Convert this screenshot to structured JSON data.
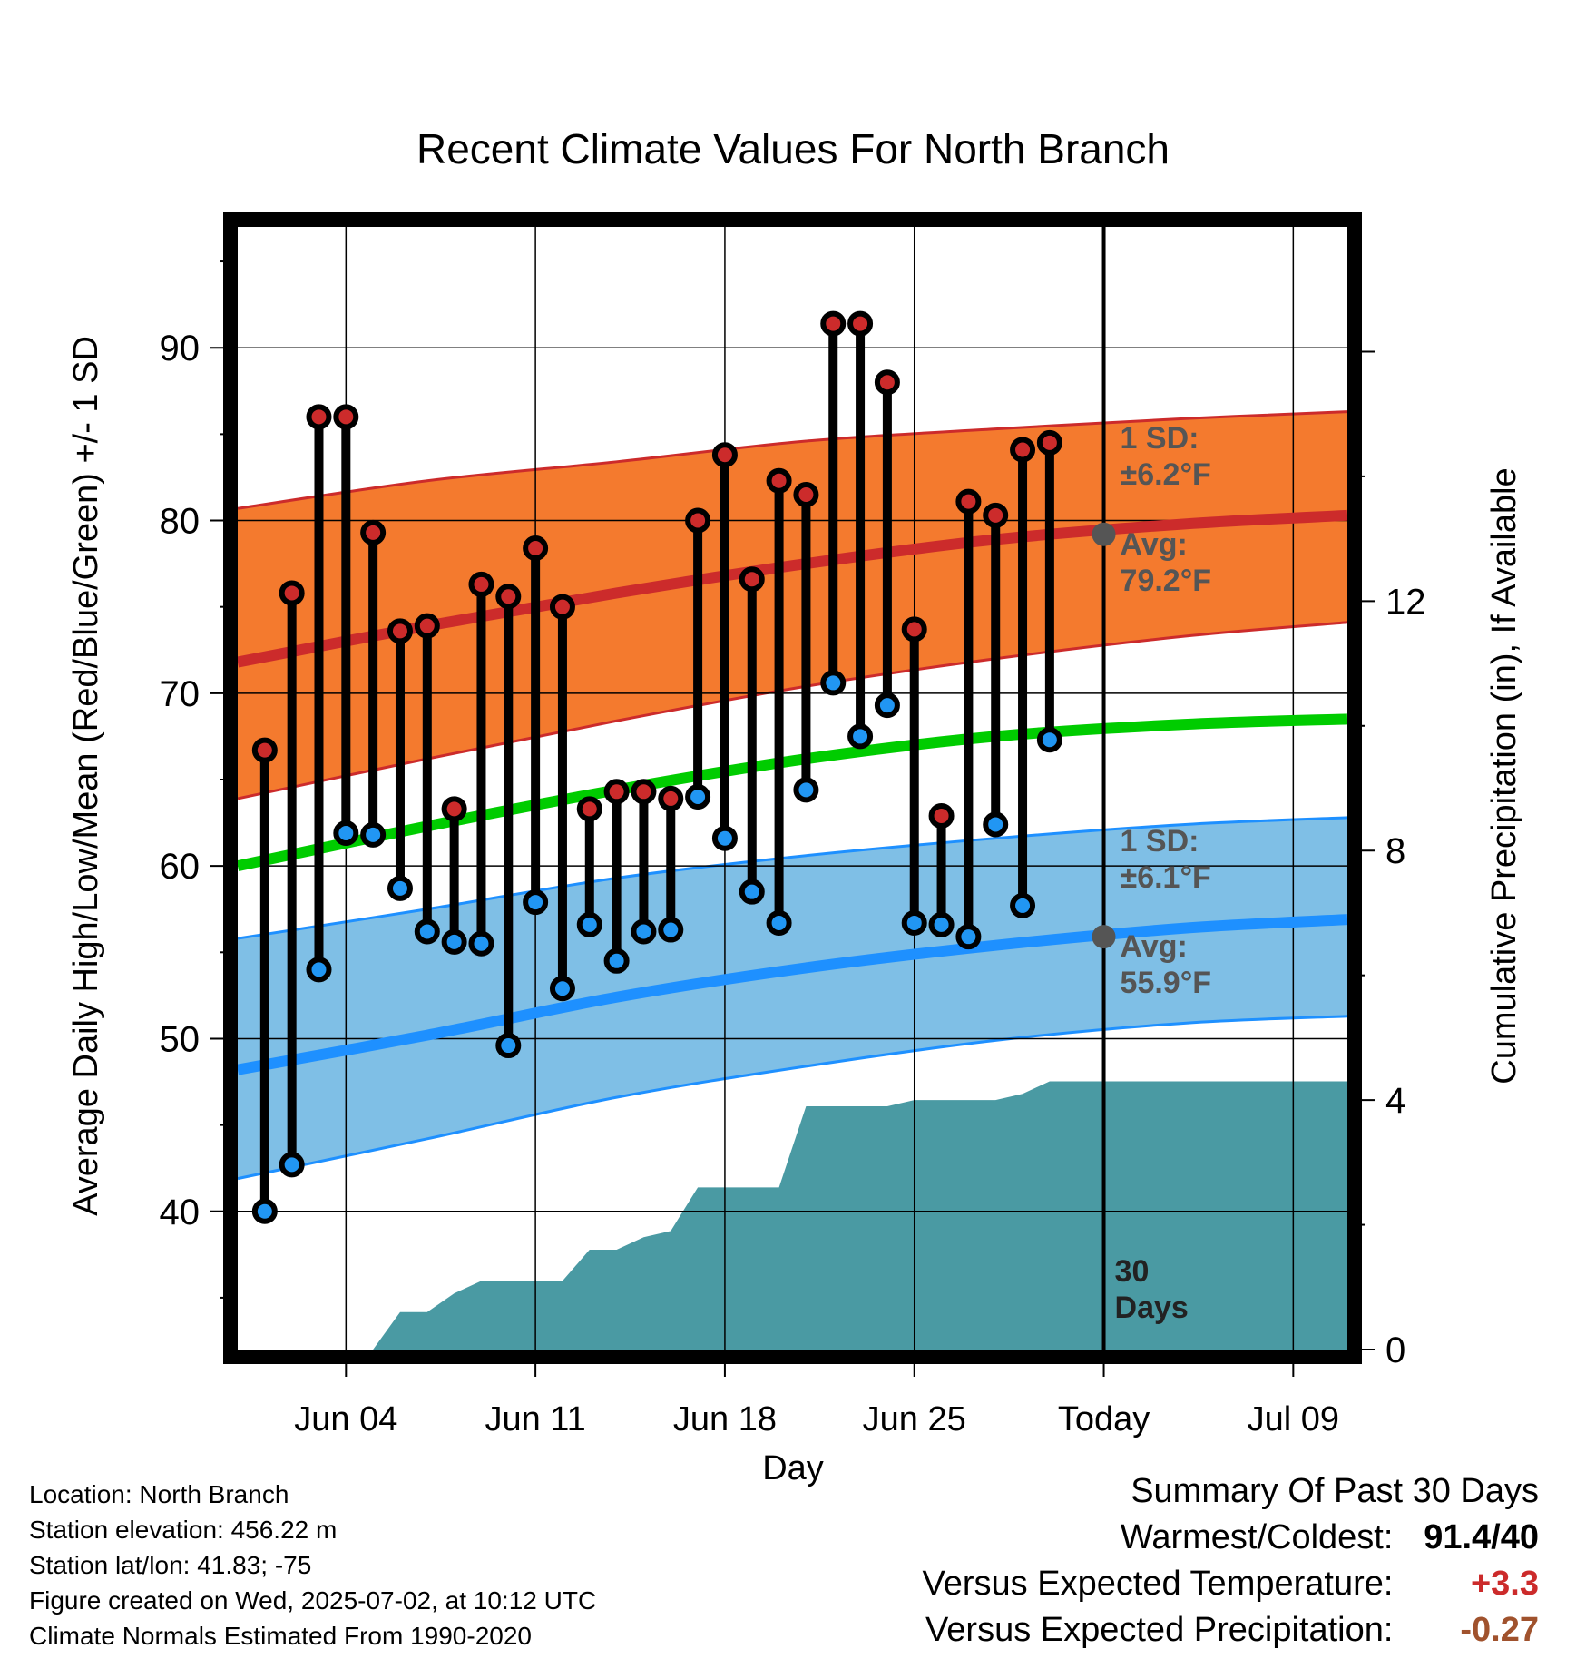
{
  "chart_data": {
    "type": "line",
    "title": "Recent Climate Values For North Branch",
    "xlabel": "Day",
    "ylabel_left": "Average Daily High/Low/Mean (Red/Blue/Green) +/- 1 SD",
    "ylabel_right": "Cumulative Precipitation (in), If Available",
    "x_range": [
      "May 31",
      "Jul 11"
    ],
    "ylim_left": [
      32,
      97
    ],
    "ylim_right": [
      0,
      18
    ],
    "x_ticks": [
      {
        "date": "Jun 04",
        "label": "Jun 04"
      },
      {
        "date": "Jun 11",
        "label": "Jun 11"
      },
      {
        "date": "Jun 18",
        "label": "Jun 18"
      },
      {
        "date": "Jun 25",
        "label": "Jun 25"
      },
      {
        "date": "Jul 02",
        "label": "Today"
      },
      {
        "date": "Jul 09",
        "label": "Jul 09"
      }
    ],
    "y_ticks_left": [
      40,
      50,
      60,
      70,
      80,
      90
    ],
    "y_ticks_right": [
      0,
      4,
      8,
      12
    ],
    "grid": true,
    "normals": {
      "dates": [
        "May 31",
        "Jun 07",
        "Jun 14",
        "Jun 21",
        "Jun 28",
        "Jul 05",
        "Jul 11"
      ],
      "high_mean": [
        71.8,
        73.9,
        75.8,
        77.5,
        78.9,
        79.8,
        80.3
      ],
      "high_plus_sd": [
        80.7,
        82.3,
        83.4,
        84.6,
        85.3,
        85.9,
        86.3
      ],
      "high_minus_sd": [
        63.9,
        66.2,
        68.4,
        70.4,
        72.0,
        73.3,
        74.1
      ],
      "mean": [
        60.0,
        62.3,
        64.4,
        66.2,
        67.5,
        68.2,
        68.5
      ],
      "low_mean": [
        48.2,
        50.2,
        52.4,
        54.1,
        55.4,
        56.4,
        56.9
      ],
      "low_plus_sd": [
        55.8,
        57.5,
        59.3,
        60.6,
        61.6,
        62.4,
        62.8
      ],
      "low_minus_sd": [
        41.9,
        44.2,
        46.6,
        48.4,
        49.9,
        50.9,
        51.3
      ]
    },
    "series": [
      {
        "name": "High",
        "color": "#cc2b2b",
        "dates": [
          "Jun 01",
          "Jun 02",
          "Jun 03",
          "Jun 04",
          "Jun 05",
          "Jun 06",
          "Jun 07",
          "Jun 08",
          "Jun 09",
          "Jun 10",
          "Jun 11",
          "Jun 12",
          "Jun 13",
          "Jun 14",
          "Jun 15",
          "Jun 16",
          "Jun 17",
          "Jun 18",
          "Jun 19",
          "Jun 20",
          "Jun 21",
          "Jun 22",
          "Jun 23",
          "Jun 24",
          "Jun 25",
          "Jun 26",
          "Jun 27",
          "Jun 28",
          "Jun 29",
          "Jun 30",
          "Jul 01"
        ],
        "values": [
          66.7,
          75.8,
          86.0,
          86.0,
          79.3,
          73.6,
          73.9,
          63.3,
          76.3,
          75.6,
          78.4,
          75.0,
          63.3,
          64.3,
          64.3,
          63.9,
          80.0,
          83.8,
          76.6,
          82.3,
          81.5,
          91.4,
          91.4,
          88.0,
          73.7,
          62.9,
          81.1,
          80.3,
          84.1,
          84.5,
          null
        ]
      },
      {
        "name": "Low",
        "color": "#2196f3",
        "dates": [
          "Jun 01",
          "Jun 02",
          "Jun 03",
          "Jun 04",
          "Jun 05",
          "Jun 06",
          "Jun 07",
          "Jun 08",
          "Jun 09",
          "Jun 10",
          "Jun 11",
          "Jun 12",
          "Jun 13",
          "Jun 14",
          "Jun 15",
          "Jun 16",
          "Jun 17",
          "Jun 18",
          "Jun 19",
          "Jun 20",
          "Jun 21",
          "Jun 22",
          "Jun 23",
          "Jun 24",
          "Jun 25",
          "Jun 26",
          "Jun 27",
          "Jun 28",
          "Jun 29",
          "Jun 30",
          "Jul 01"
        ],
        "values": [
          40.0,
          42.7,
          54.0,
          61.9,
          61.8,
          58.7,
          56.2,
          55.6,
          55.5,
          49.6,
          57.9,
          52.9,
          56.6,
          54.5,
          56.2,
          56.3,
          64.0,
          61.6,
          58.5,
          56.7,
          64.4,
          70.6,
          67.5,
          69.3,
          56.7,
          56.6,
          55.9,
          62.4,
          57.7,
          67.3,
          null
        ]
      },
      {
        "name": "Cumulative Precipitation",
        "color": "#4a9aa3",
        "dates": [
          "Jun 02",
          "Jun 03",
          "Jun 04",
          "Jun 05",
          "Jun 06",
          "Jun 07",
          "Jun 08",
          "Jun 09",
          "Jun 10",
          "Jun 11",
          "Jun 12",
          "Jun 13",
          "Jun 14",
          "Jun 15",
          "Jun 16",
          "Jun 17",
          "Jun 18",
          "Jun 19",
          "Jun 20",
          "Jun 21",
          "Jun 22",
          "Jun 23",
          "Jun 24",
          "Jun 25",
          "Jun 26",
          "Jun 27",
          "Jun 28",
          "Jun 29",
          "Jun 30",
          "Jul 01",
          "Jul 02",
          "Jul 11"
        ],
        "values": [
          0,
          0,
          0,
          0,
          0.6,
          0.6,
          0.9,
          1.1,
          1.1,
          1.1,
          1.1,
          1.6,
          1.6,
          1.8,
          1.9,
          2.6,
          2.6,
          2.6,
          2.6,
          3.9,
          3.9,
          3.9,
          3.9,
          4.0,
          4.0,
          4.0,
          4.0,
          4.1,
          4.3,
          4.3,
          4.3,
          4.3
        ]
      }
    ],
    "annotations": {
      "high_sd": "1 SD:",
      "high_sd_val": "±6.2°F",
      "high_avg": "Avg:",
      "high_avg_val": "79.2°F",
      "high_avg_value": 79.2,
      "low_sd": "1 SD:",
      "low_sd_val": "±6.1°F",
      "low_avg": "Avg:",
      "low_avg_val": "55.9°F",
      "low_avg_value": 55.9,
      "days_1": "30",
      "days_2": "Days"
    }
  },
  "info": {
    "location": "Location: North Branch",
    "elevation": "Station elevation: 456.22 m",
    "latlon": "Station lat/lon: 41.83; -75",
    "created": "Figure created on Wed, 2025-07-02, at 10:12 UTC",
    "normals": "Climate Normals Estimated From 1990-2020"
  },
  "summary": {
    "title": "Summary Of Past 30 Days",
    "warmest_label": "Warmest/Coldest:",
    "warmest_value": "91.4/40",
    "temp_label": "Versus Expected Temperature:",
    "temp_value": "+3.3",
    "precip_label": "Versus Expected Precipitation:",
    "precip_value": "-0.27",
    "temp_color": "#cc2b2b",
    "precip_color": "#a0522d"
  },
  "colors": {
    "high_band": "#f47a2e",
    "high_line": "#cc2b2b",
    "low_band": "#7fbfe6",
    "low_line": "#1e90ff",
    "mean_line": "#00cc00",
    "precip_fill": "#4a9aa3",
    "annotation": "#555555"
  }
}
